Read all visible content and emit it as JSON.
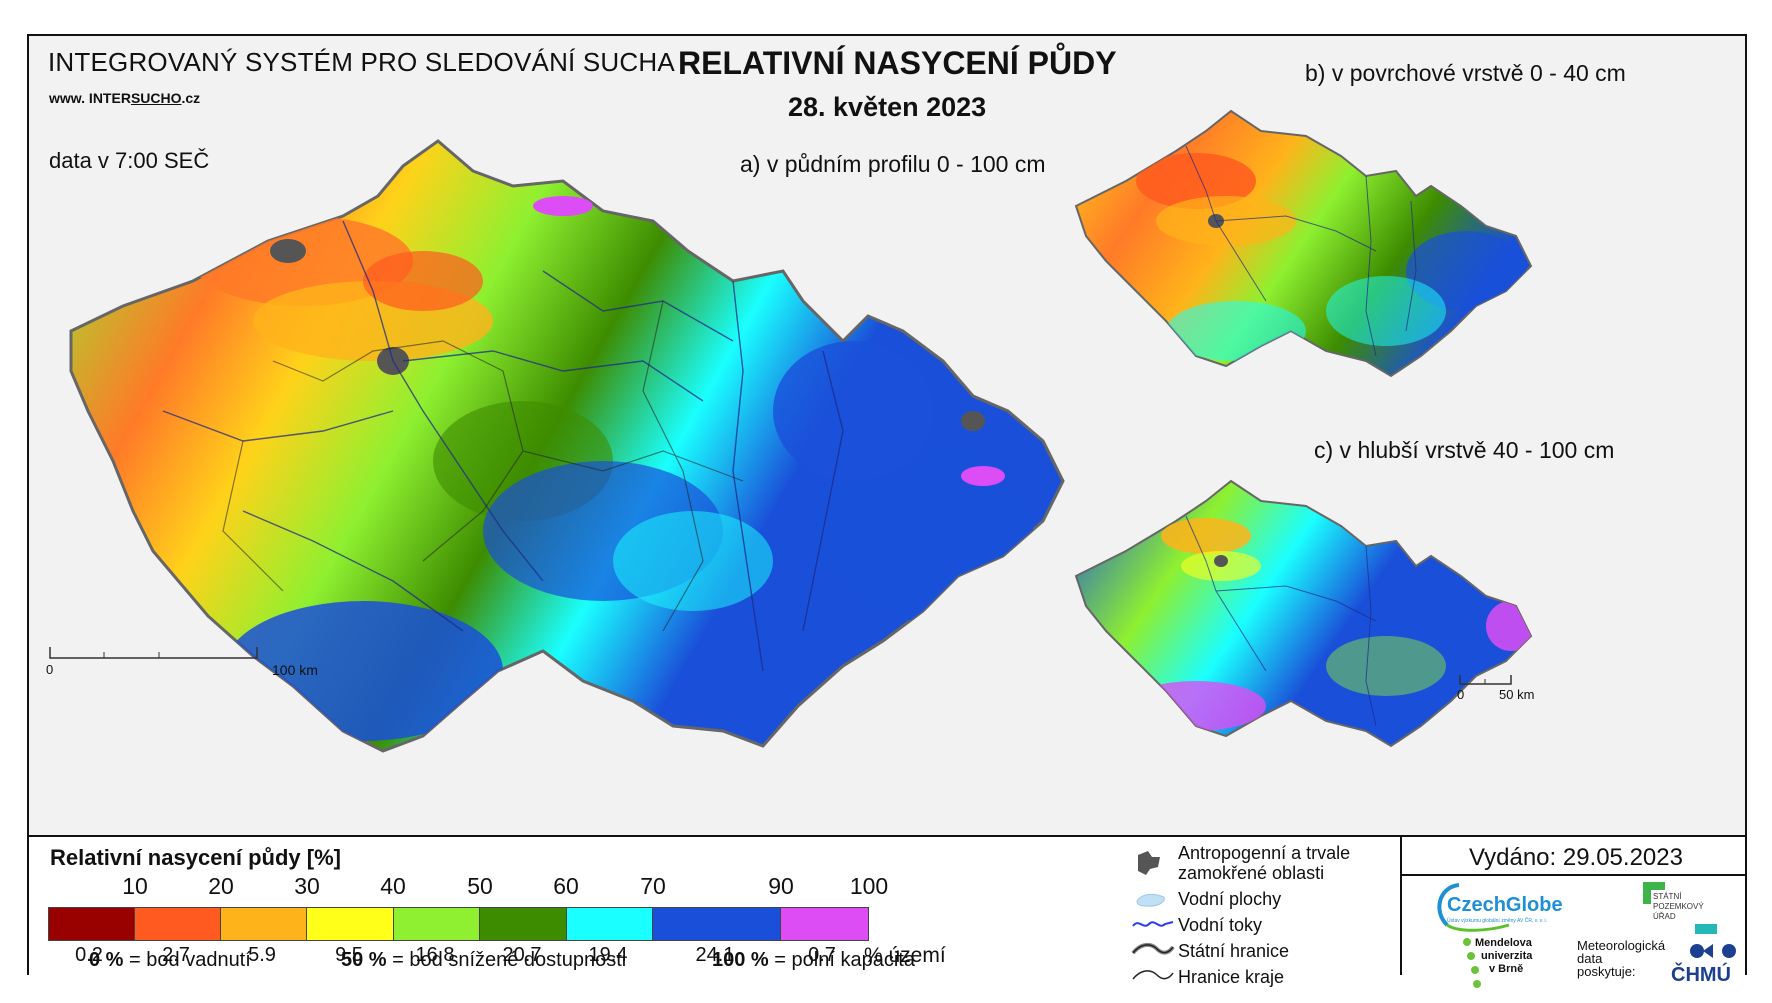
{
  "header": {
    "system_title": "INTEGROVANÝ SYSTÉM PRO SLEDOVÁNÍ SUCHA",
    "website_prefix": "www. INTER",
    "website_brand": "SUCHO",
    "website_suffix": ".cz",
    "data_time": "data v 7:00 SEČ",
    "main_title": "RELATIVNÍ NASYCENÍ PŮDY",
    "date": "28. květen 2023"
  },
  "maps": {
    "a_title": "a) v půdním profilu 0 - 100 cm",
    "b_title": "b) v povrchové vrstvě 0 - 40 cm",
    "c_title": "c) v hlubší vrstvě 40 - 100 cm",
    "scale_main": {
      "start": "0",
      "end": "100 km"
    },
    "scale_small": {
      "start": "0",
      "end": "50 km"
    }
  },
  "legend": {
    "title": "Relativní nasycení půdy [%]",
    "thresholds": [
      "10",
      "20",
      "30",
      "40",
      "50",
      "60",
      "70",
      "90",
      "100"
    ],
    "colors": [
      "#990000",
      "#ff5a1f",
      "#ffb31a",
      "#ffff1a",
      "#8ef030",
      "#3d8c00",
      "#1affff",
      "#1a50d9",
      "#dd4df5"
    ],
    "area_percent": [
      "0.2",
      "2.7",
      "5.9",
      "9.5",
      "16.8",
      "20.7",
      "19.4",
      "24.1",
      "0.7"
    ],
    "area_unit": "% území",
    "notes": [
      {
        "value": "0 %",
        "text": "= bod vadnutí"
      },
      {
        "value": "50 %",
        "text": "= bod snížené dostupnosti"
      },
      {
        "value": "100 %",
        "text": "= polní kapacita"
      }
    ]
  },
  "symbols": {
    "anthropogenic": "Antropogenní a trvale",
    "anthropogenic_2": "zamokřené oblasti",
    "water_bodies": "Vodní plochy",
    "rivers": "Vodní toky",
    "state_border": "Státní hranice",
    "region_border": "Hranice kraje",
    "anthro_color": "#555555",
    "water_color": "#bfe0f5",
    "river_color": "#2b3cf0"
  },
  "footer": {
    "issued": "Vydáno: 29.05.2023",
    "czechglobe": "CzechGlobe",
    "czechglobe_sub": "Ústav výzkumu globální změny AV ČR, v. v. i.",
    "spu": "STÁTNÍ POZEMKOVÝ ÚŘAD",
    "mendel_1": "Mendelova",
    "mendel_2": "univerzita",
    "mendel_3": "v Brně",
    "meteo_1": "Meteorologická",
    "meteo_2": "data",
    "meteo_3": "poskytuje:",
    "chmu": "ČHMÚ"
  }
}
